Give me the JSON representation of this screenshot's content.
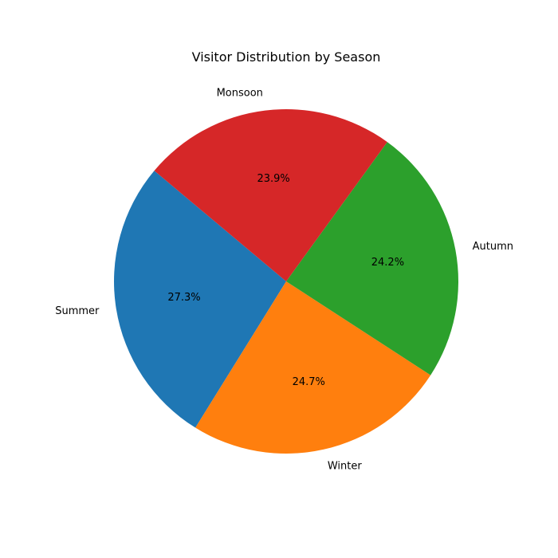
{
  "chart_data": {
    "type": "pie",
    "title": "Visitor Distribution by Season",
    "labels": [
      "Summer",
      "Winter",
      "Autumn",
      "Monsoon"
    ],
    "values": [
      27.3,
      24.7,
      24.2,
      23.9
    ],
    "percent_labels": [
      "27.3%",
      "24.7%",
      "24.2%",
      "23.9%"
    ],
    "colors": [
      "#1f77b4",
      "#ff7f0e",
      "#2ca02c",
      "#d62728"
    ],
    "start_angle_deg": 140,
    "direction": "counterclockwise"
  }
}
